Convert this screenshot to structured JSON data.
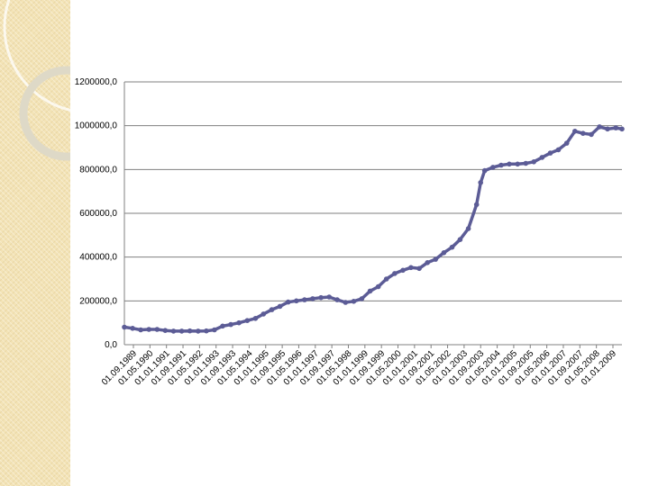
{
  "colors": {
    "series": "#5c5c96",
    "grid": "#7f7f7f",
    "axis": "#808080",
    "sidebar": "#f3e3b6",
    "ring": "#ded9c7"
  },
  "chart_data": {
    "type": "line",
    "title": "",
    "xlabel": "",
    "ylabel": "",
    "ylim": [
      0,
      1200000
    ],
    "y_ticks": [
      "0,0",
      "200000,0",
      "400000,0",
      "600000,0",
      "800000,0",
      "1000000,0",
      "1200000,0"
    ],
    "y_tick_values": [
      0,
      200000,
      400000,
      600000,
      800000,
      1000000,
      1200000
    ],
    "grid": "horizontal",
    "legend": "none",
    "x_tick_labels": [
      "01.09.1989",
      "01.05.1990",
      "01.01.1991",
      "01.09.1991",
      "01.05.1992",
      "01.01.1993",
      "01.09.1993",
      "01.05.1994",
      "01.01.1995",
      "01.09.1995",
      "01.05.1996",
      "01.01.1997",
      "01.09.1997",
      "01.05.1998",
      "01.01.1999",
      "01.09.1999",
      "01.05.2000",
      "01.01.2001",
      "01.09.2001",
      "01.05.2002",
      "01.01.2003",
      "01.09.2003",
      "01.05.2004",
      "01.01.2005",
      "01.09.2005",
      "01.05.2006",
      "01.01.2007",
      "01.09.2007",
      "01.05.2008",
      "01.01.2009"
    ],
    "x_range": [
      "1989-09-01",
      "2009-12-01"
    ],
    "series": [
      {
        "values": [
          {
            "x": "1989-09-01",
            "y": 80000
          },
          {
            "x": "1990-01-01",
            "y": 75000
          },
          {
            "x": "1990-05-01",
            "y": 68000
          },
          {
            "x": "1990-09-01",
            "y": 70000
          },
          {
            "x": "1991-01-01",
            "y": 70000
          },
          {
            "x": "1991-05-01",
            "y": 65000
          },
          {
            "x": "1991-09-01",
            "y": 62000
          },
          {
            "x": "1992-01-01",
            "y": 62000
          },
          {
            "x": "1992-05-01",
            "y": 63000
          },
          {
            "x": "1992-09-01",
            "y": 62000
          },
          {
            "x": "1993-01-01",
            "y": 63000
          },
          {
            "x": "1993-05-01",
            "y": 68000
          },
          {
            "x": "1993-09-01",
            "y": 85000
          },
          {
            "x": "1994-01-01",
            "y": 92000
          },
          {
            "x": "1994-05-01",
            "y": 100000
          },
          {
            "x": "1994-09-01",
            "y": 110000
          },
          {
            "x": "1995-01-01",
            "y": 120000
          },
          {
            "x": "1995-05-01",
            "y": 140000
          },
          {
            "x": "1995-09-01",
            "y": 160000
          },
          {
            "x": "1996-01-01",
            "y": 175000
          },
          {
            "x": "1996-05-01",
            "y": 195000
          },
          {
            "x": "1996-09-01",
            "y": 200000
          },
          {
            "x": "1997-01-01",
            "y": 205000
          },
          {
            "x": "1997-05-01",
            "y": 210000
          },
          {
            "x": "1997-09-01",
            "y": 215000
          },
          {
            "x": "1998-01-01",
            "y": 218000
          },
          {
            "x": "1998-05-01",
            "y": 205000
          },
          {
            "x": "1998-09-01",
            "y": 193000
          },
          {
            "x": "1999-01-01",
            "y": 198000
          },
          {
            "x": "1999-05-01",
            "y": 210000
          },
          {
            "x": "1999-09-01",
            "y": 245000
          },
          {
            "x": "2000-01-01",
            "y": 265000
          },
          {
            "x": "2000-05-01",
            "y": 300000
          },
          {
            "x": "2000-09-01",
            "y": 325000
          },
          {
            "x": "2001-01-01",
            "y": 340000
          },
          {
            "x": "2001-05-01",
            "y": 352000
          },
          {
            "x": "2001-09-01",
            "y": 348000
          },
          {
            "x": "2002-01-01",
            "y": 375000
          },
          {
            "x": "2002-05-01",
            "y": 390000
          },
          {
            "x": "2002-09-01",
            "y": 420000
          },
          {
            "x": "2003-01-01",
            "y": 445000
          },
          {
            "x": "2003-05-01",
            "y": 480000
          },
          {
            "x": "2003-09-01",
            "y": 530000
          },
          {
            "x": "2004-01-01",
            "y": 640000
          },
          {
            "x": "2004-03-01",
            "y": 740000
          },
          {
            "x": "2004-05-01",
            "y": 795000
          },
          {
            "x": "2004-09-01",
            "y": 810000
          },
          {
            "x": "2005-01-01",
            "y": 820000
          },
          {
            "x": "2005-05-01",
            "y": 825000
          },
          {
            "x": "2005-09-01",
            "y": 825000
          },
          {
            "x": "2006-01-01",
            "y": 828000
          },
          {
            "x": "2006-05-01",
            "y": 835000
          },
          {
            "x": "2006-09-01",
            "y": 855000
          },
          {
            "x": "2007-01-01",
            "y": 875000
          },
          {
            "x": "2007-05-01",
            "y": 890000
          },
          {
            "x": "2007-09-01",
            "y": 920000
          },
          {
            "x": "2008-01-01",
            "y": 975000
          },
          {
            "x": "2008-05-01",
            "y": 965000
          },
          {
            "x": "2008-09-01",
            "y": 960000
          },
          {
            "x": "2009-01-01",
            "y": 995000
          },
          {
            "x": "2009-05-01",
            "y": 985000
          },
          {
            "x": "2009-09-01",
            "y": 990000
          },
          {
            "x": "2009-12-01",
            "y": 985000
          }
        ]
      }
    ]
  }
}
